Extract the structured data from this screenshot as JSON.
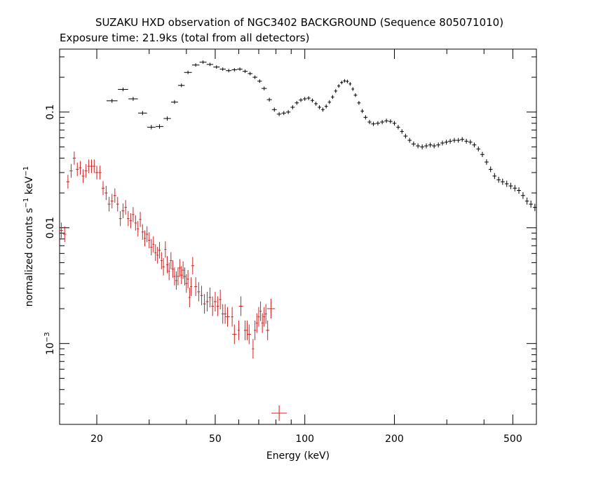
{
  "chart_data": {
    "type": "scatter",
    "title": "SUZAKU HXD observation of NGC3402 BACKGROUND (Sequence 805071010)",
    "subtitle": "Exposure time: 21.9ks (total from all detectors)",
    "xlabel": "Energy (keV)",
    "ylabel": {
      "prefix": "normalized counts s",
      "sup1": "−1",
      "mid": " keV",
      "sup2": "−1"
    },
    "x_scale": "log",
    "y_scale": "log",
    "xlim": [
      15,
      600
    ],
    "ylim": [
      0.0002,
      0.35
    ],
    "x_ticks": [
      {
        "value": 20,
        "label": "20"
      },
      {
        "value": 50,
        "label": "50"
      },
      {
        "value": 100,
        "label": "100"
      },
      {
        "value": 200,
        "label": "200"
      },
      {
        "value": 500,
        "label": "500"
      }
    ],
    "y_ticks": [
      {
        "value": 0.1,
        "label": "0.1"
      },
      {
        "value": 0.01,
        "label": "0.01"
      },
      {
        "value": 0.001,
        "label": "10",
        "sup": "−3"
      }
    ],
    "grid": false,
    "series": [
      {
        "color": "#000000",
        "points": [
          [
            22.5,
            0.125
          ],
          [
            24.5,
            0.157
          ],
          [
            26.5,
            0.13
          ],
          [
            28.5,
            0.098
          ],
          [
            30.5,
            0.074
          ],
          [
            32.5,
            0.075
          ],
          [
            34.5,
            0.088
          ],
          [
            36.5,
            0.122
          ],
          [
            38.5,
            0.17
          ],
          [
            40.5,
            0.22
          ],
          [
            43,
            0.255
          ],
          [
            45.5,
            0.27
          ],
          [
            48,
            0.258
          ],
          [
            50.5,
            0.245
          ],
          [
            53,
            0.235
          ],
          [
            55.5,
            0.228
          ],
          [
            58,
            0.232
          ],
          [
            60.5,
            0.235
          ],
          [
            63,
            0.225
          ],
          [
            65.5,
            0.215
          ],
          [
            68,
            0.2
          ],
          [
            70.5,
            0.185
          ],
          [
            73,
            0.16
          ],
          [
            76,
            0.128
          ],
          [
            79,
            0.105
          ],
          [
            82,
            0.096
          ],
          [
            85,
            0.098
          ],
          [
            88,
            0.1
          ],
          [
            91,
            0.11
          ],
          [
            94,
            0.12
          ],
          [
            97,
            0.127
          ],
          [
            100,
            0.13
          ],
          [
            103,
            0.132
          ],
          [
            106,
            0.126
          ],
          [
            109,
            0.118
          ],
          [
            112,
            0.11
          ],
          [
            115,
            0.105
          ],
          [
            118,
            0.112
          ],
          [
            121,
            0.122
          ],
          [
            124,
            0.135
          ],
          [
            127,
            0.152
          ],
          [
            130,
            0.168
          ],
          [
            133,
            0.18
          ],
          [
            136,
            0.186
          ],
          [
            139,
            0.184
          ],
          [
            142,
            0.175
          ],
          [
            145,
            0.158
          ],
          [
            148,
            0.14
          ],
          [
            152,
            0.12
          ],
          [
            156,
            0.102
          ],
          [
            160,
            0.09
          ],
          [
            165,
            0.082
          ],
          [
            170,
            0.079
          ],
          [
            176,
            0.08
          ],
          [
            182,
            0.082
          ],
          [
            188,
            0.084
          ],
          [
            194,
            0.083
          ],
          [
            200,
            0.08
          ],
          [
            206,
            0.074
          ],
          [
            212,
            0.068
          ],
          [
            218,
            0.062
          ],
          [
            225,
            0.057
          ],
          [
            232,
            0.053
          ],
          [
            240,
            0.051
          ],
          [
            248,
            0.05
          ],
          [
            256,
            0.051
          ],
          [
            264,
            0.052
          ],
          [
            272,
            0.051
          ],
          [
            281,
            0.052
          ],
          [
            290,
            0.054
          ],
          [
            299,
            0.055
          ],
          [
            308,
            0.056
          ],
          [
            318,
            0.057
          ],
          [
            328,
            0.057
          ],
          [
            338,
            0.058
          ],
          [
            349,
            0.056
          ],
          [
            360,
            0.055
          ],
          [
            371,
            0.052
          ],
          [
            383,
            0.048
          ],
          [
            395,
            0.043
          ],
          [
            408,
            0.037
          ],
          [
            421,
            0.032
          ],
          [
            434,
            0.028
          ],
          [
            448,
            0.026
          ],
          [
            462,
            0.025
          ],
          [
            477,
            0.024
          ],
          [
            492,
            0.023
          ],
          [
            508,
            0.022
          ],
          [
            524,
            0.021
          ],
          [
            541,
            0.019
          ],
          [
            558,
            0.017
          ],
          [
            575,
            0.016
          ],
          [
            593,
            0.015
          ]
        ]
      },
      {
        "color": "#cc2222",
        "points": [
          [
            15.2,
            0.0095
          ],
          [
            15.6,
            0.0088
          ],
          [
            16,
            0.025
          ],
          [
            16.4,
            0.031
          ],
          [
            16.8,
            0.04
          ],
          [
            17.2,
            0.032
          ],
          [
            17.6,
            0.033
          ],
          [
            18,
            0.028
          ],
          [
            18.4,
            0.031
          ],
          [
            18.8,
            0.034
          ],
          [
            19.2,
            0.034
          ],
          [
            19.6,
            0.034
          ],
          [
            20,
            0.03
          ],
          [
            20.5,
            0.03
          ],
          [
            21,
            0.022
          ],
          [
            21.5,
            0.02
          ],
          [
            22,
            0.016
          ],
          [
            22.5,
            0.017
          ],
          [
            23,
            0.019
          ],
          [
            23.5,
            0.016
          ],
          [
            24,
            0.012
          ],
          [
            24.5,
            0.014
          ],
          [
            25,
            0.015
          ],
          [
            25.5,
            0.012
          ],
          [
            26,
            0.0115
          ],
          [
            26.5,
            0.013
          ],
          [
            27,
            0.011
          ],
          [
            27.5,
            0.0098
          ],
          [
            28,
            0.0118
          ],
          [
            28.5,
            0.0092
          ],
          [
            29,
            0.0081
          ],
          [
            29.5,
            0.0088
          ],
          [
            30,
            0.0078
          ],
          [
            30.5,
            0.0068
          ],
          [
            31,
            0.0072
          ],
          [
            31.5,
            0.0061
          ],
          [
            32,
            0.0058
          ],
          [
            32.5,
            0.0064
          ],
          [
            33,
            0.0052
          ],
          [
            33.5,
            0.0046
          ],
          [
            34,
            0.0065
          ],
          [
            34.5,
            0.0048
          ],
          [
            35,
            0.0042
          ],
          [
            35.5,
            0.0052
          ],
          [
            36,
            0.0044
          ],
          [
            36.5,
            0.0038
          ],
          [
            37,
            0.0035
          ],
          [
            37.5,
            0.0038
          ],
          [
            38,
            0.0045
          ],
          [
            38.5,
            0.0039
          ],
          [
            39,
            0.0043
          ],
          [
            39.5,
            0.0038
          ],
          [
            40,
            0.0033
          ],
          [
            40.5,
            0.0036
          ],
          [
            41,
            0.0025
          ],
          [
            41.5,
            0.0031
          ],
          [
            42,
            0.0047
          ],
          [
            43,
            0.0031
          ],
          [
            44,
            0.0028
          ],
          [
            45,
            0.0026
          ],
          [
            46,
            0.0022
          ],
          [
            47,
            0.0023
          ],
          [
            48,
            0.0025
          ],
          [
            49,
            0.0021
          ],
          [
            50,
            0.0023
          ],
          [
            51,
            0.0021
          ],
          [
            52,
            0.0024
          ],
          [
            53,
            0.0018
          ],
          [
            54,
            0.0018
          ],
          [
            55,
            0.0017
          ],
          [
            57,
            0.0017
          ],
          [
            58,
            0.0012
          ],
          [
            60,
            0.0013
          ],
          [
            61,
            0.0021
          ],
          [
            63,
            0.0013
          ],
          [
            64,
            0.0013
          ],
          [
            65,
            0.0012
          ],
          [
            67,
            0.0009
          ],
          [
            68,
            0.0013
          ],
          [
            69,
            0.0015
          ],
          [
            70,
            0.0017
          ],
          [
            71,
            0.0019
          ],
          [
            72,
            0.0015
          ],
          [
            73,
            0.0017
          ],
          [
            74,
            0.0018
          ],
          [
            75,
            0.0013
          ],
          [
            77,
            0.002
          ],
          [
            82,
            0.00025
          ]
        ]
      }
    ]
  }
}
